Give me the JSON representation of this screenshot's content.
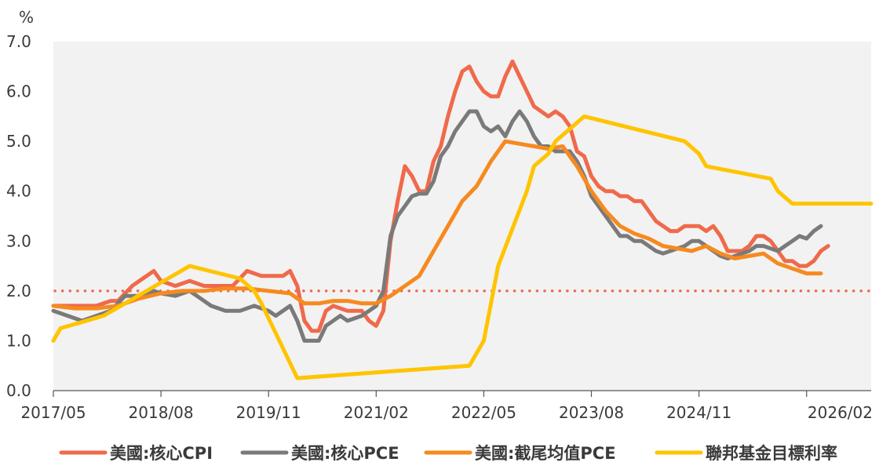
{
  "chart_data": {
    "type": "line",
    "unit": "%",
    "ylim": [
      0,
      7
    ],
    "yticks": [
      "0.0",
      "1.0",
      "2.0",
      "3.0",
      "4.0",
      "5.0",
      "6.0",
      "7.0"
    ],
    "xlim": [
      "2017/05",
      "2026/11"
    ],
    "xticks": [
      "2017/05",
      "2018/08",
      "2019/11",
      "2021/02",
      "2022/05",
      "2023/08",
      "2024/11",
      "2026/02"
    ],
    "reference_line": {
      "y": 2.0,
      "style": "dotted",
      "color": "#ef6a4b"
    },
    "grid": false,
    "legend_position": "bottom",
    "series": [
      {
        "name": "美國:核心CPI",
        "color": "#ef6a4b",
        "points": [
          [
            "2017/05",
            1.7
          ],
          [
            "2017/08",
            1.7
          ],
          [
            "2017/11",
            1.7
          ],
          [
            "2018/01",
            1.8
          ],
          [
            "2018/02",
            1.8
          ],
          [
            "2018/04",
            2.1
          ],
          [
            "2018/05",
            2.2
          ],
          [
            "2018/07",
            2.4
          ],
          [
            "2018/08",
            2.2
          ],
          [
            "2018/10",
            2.1
          ],
          [
            "2018/12",
            2.2
          ],
          [
            "2019/02",
            2.1
          ],
          [
            "2019/04",
            2.1
          ],
          [
            "2019/06",
            2.1
          ],
          [
            "2019/08",
            2.4
          ],
          [
            "2019/10",
            2.3
          ],
          [
            "2019/12",
            2.3
          ],
          [
            "2020/01",
            2.3
          ],
          [
            "2020/02",
            2.4
          ],
          [
            "2020/03",
            2.1
          ],
          [
            "2020/04",
            1.4
          ],
          [
            "2020/05",
            1.2
          ],
          [
            "2020/06",
            1.2
          ],
          [
            "2020/07",
            1.6
          ],
          [
            "2020/08",
            1.7
          ],
          [
            "2020/10",
            1.6
          ],
          [
            "2020/12",
            1.6
          ],
          [
            "2021/01",
            1.4
          ],
          [
            "2021/02",
            1.3
          ],
          [
            "2021/03",
            1.6
          ],
          [
            "2021/04",
            3.0
          ],
          [
            "2021/05",
            3.8
          ],
          [
            "2021/06",
            4.5
          ],
          [
            "2021/07",
            4.3
          ],
          [
            "2021/08",
            4.0
          ],
          [
            "2021/09",
            4.0
          ],
          [
            "2021/10",
            4.6
          ],
          [
            "2021/11",
            4.9
          ],
          [
            "2021/12",
            5.5
          ],
          [
            "2022/01",
            6.0
          ],
          [
            "2022/02",
            6.4
          ],
          [
            "2022/03",
            6.5
          ],
          [
            "2022/04",
            6.2
          ],
          [
            "2022/05",
            6.0
          ],
          [
            "2022/06",
            5.9
          ],
          [
            "2022/07",
            5.9
          ],
          [
            "2022/08",
            6.3
          ],
          [
            "2022/09",
            6.6
          ],
          [
            "2022/10",
            6.3
          ],
          [
            "2022/11",
            6.0
          ],
          [
            "2022/12",
            5.7
          ],
          [
            "2023/01",
            5.6
          ],
          [
            "2023/02",
            5.5
          ],
          [
            "2023/03",
            5.6
          ],
          [
            "2023/04",
            5.5
          ],
          [
            "2023/05",
            5.3
          ],
          [
            "2023/06",
            4.8
          ],
          [
            "2023/07",
            4.7
          ],
          [
            "2023/08",
            4.3
          ],
          [
            "2023/09",
            4.1
          ],
          [
            "2023/10",
            4.0
          ],
          [
            "2023/11",
            4.0
          ],
          [
            "2023/12",
            3.9
          ],
          [
            "2024/01",
            3.9
          ],
          [
            "2024/02",
            3.8
          ],
          [
            "2024/03",
            3.8
          ],
          [
            "2024/04",
            3.6
          ],
          [
            "2024/05",
            3.4
          ],
          [
            "2024/06",
            3.3
          ],
          [
            "2024/07",
            3.2
          ],
          [
            "2024/08",
            3.2
          ],
          [
            "2024/09",
            3.3
          ],
          [
            "2024/10",
            3.3
          ],
          [
            "2024/11",
            3.3
          ],
          [
            "2024/12",
            3.2
          ],
          [
            "2025/01",
            3.3
          ],
          [
            "2025/02",
            3.1
          ],
          [
            "2025/03",
            2.8
          ],
          [
            "2025/04",
            2.8
          ],
          [
            "2025/05",
            2.8
          ],
          [
            "2025/06",
            2.9
          ],
          [
            "2025/07",
            3.1
          ],
          [
            "2025/08",
            3.1
          ],
          [
            "2025/09",
            3.0
          ],
          [
            "2025/10",
            2.8
          ],
          [
            "2025/11",
            2.6
          ],
          [
            "2025/12",
            2.6
          ],
          [
            "2026/01",
            2.5
          ],
          [
            "2026/02",
            2.5
          ],
          [
            "2026/03",
            2.6
          ],
          [
            "2026/04",
            2.8
          ],
          [
            "2026/05",
            2.9
          ]
        ]
      },
      {
        "name": "美國:核心PCE",
        "color": "#7a7a7a",
        "points": [
          [
            "2017/05",
            1.6
          ],
          [
            "2017/07",
            1.5
          ],
          [
            "2017/09",
            1.4
          ],
          [
            "2017/11",
            1.5
          ],
          [
            "2018/01",
            1.6
          ],
          [
            "2018/03",
            1.9
          ],
          [
            "2018/05",
            1.9
          ],
          [
            "2018/07",
            2.0
          ],
          [
            "2018/08",
            1.95
          ],
          [
            "2018/10",
            1.9
          ],
          [
            "2018/12",
            2.0
          ],
          [
            "2019/01",
            1.9
          ],
          [
            "2019/03",
            1.7
          ],
          [
            "2019/05",
            1.6
          ],
          [
            "2019/07",
            1.6
          ],
          [
            "2019/09",
            1.7
          ],
          [
            "2019/11",
            1.6
          ],
          [
            "2019/12",
            1.5
          ],
          [
            "2020/01",
            1.6
          ],
          [
            "2020/02",
            1.7
          ],
          [
            "2020/03",
            1.4
          ],
          [
            "2020/04",
            1.0
          ],
          [
            "2020/05",
            1.0
          ],
          [
            "2020/06",
            1.0
          ],
          [
            "2020/07",
            1.3
          ],
          [
            "2020/08",
            1.4
          ],
          [
            "2020/09",
            1.5
          ],
          [
            "2020/10",
            1.4
          ],
          [
            "2020/12",
            1.5
          ],
          [
            "2021/01",
            1.6
          ],
          [
            "2021/02",
            1.7
          ],
          [
            "2021/03",
            2.0
          ],
          [
            "2021/04",
            3.1
          ],
          [
            "2021/05",
            3.5
          ],
          [
            "2021/06",
            3.7
          ],
          [
            "2021/07",
            3.9
          ],
          [
            "2021/08",
            3.95
          ],
          [
            "2021/09",
            3.95
          ],
          [
            "2021/10",
            4.2
          ],
          [
            "2021/11",
            4.7
          ],
          [
            "2021/12",
            4.9
          ],
          [
            "2022/01",
            5.2
          ],
          [
            "2022/02",
            5.4
          ],
          [
            "2022/03",
            5.6
          ],
          [
            "2022/04",
            5.6
          ],
          [
            "2022/05",
            5.3
          ],
          [
            "2022/06",
            5.2
          ],
          [
            "2022/07",
            5.3
          ],
          [
            "2022/08",
            5.1
          ],
          [
            "2022/09",
            5.4
          ],
          [
            "2022/10",
            5.6
          ],
          [
            "2022/11",
            5.4
          ],
          [
            "2022/12",
            5.1
          ],
          [
            "2023/01",
            4.9
          ],
          [
            "2023/02",
            4.9
          ],
          [
            "2023/03",
            4.8
          ],
          [
            "2023/04",
            4.8
          ],
          [
            "2023/05",
            4.8
          ],
          [
            "2023/06",
            4.6
          ],
          [
            "2023/07",
            4.3
          ],
          [
            "2023/08",
            3.9
          ],
          [
            "2023/09",
            3.7
          ],
          [
            "2023/10",
            3.5
          ],
          [
            "2023/11",
            3.3
          ],
          [
            "2023/12",
            3.1
          ],
          [
            "2024/01",
            3.1
          ],
          [
            "2024/02",
            3.0
          ],
          [
            "2024/03",
            3.0
          ],
          [
            "2024/04",
            2.9
          ],
          [
            "2024/05",
            2.8
          ],
          [
            "2024/06",
            2.75
          ],
          [
            "2024/07",
            2.8
          ],
          [
            "2024/08",
            2.85
          ],
          [
            "2024/09",
            2.9
          ],
          [
            "2024/10",
            3.0
          ],
          [
            "2024/11",
            3.0
          ],
          [
            "2024/12",
            2.9
          ],
          [
            "2025/01",
            2.8
          ],
          [
            "2025/02",
            2.7
          ],
          [
            "2025/03",
            2.65
          ],
          [
            "2025/04",
            2.7
          ],
          [
            "2025/05",
            2.75
          ],
          [
            "2025/06",
            2.8
          ],
          [
            "2025/07",
            2.9
          ],
          [
            "2025/08",
            2.9
          ],
          [
            "2025/09",
            2.85
          ],
          [
            "2025/10",
            2.8
          ],
          [
            "2025/11",
            2.9
          ],
          [
            "2025/12",
            3.0
          ],
          [
            "2026/01",
            3.1
          ],
          [
            "2026/02",
            3.05
          ],
          [
            "2026/03",
            3.2
          ],
          [
            "2026/04",
            3.3
          ]
        ]
      },
      {
        "name": "美國:截尾均值PCE",
        "color": "#f68a1f",
        "points": [
          [
            "2017/05",
            1.7
          ],
          [
            "2017/08",
            1.65
          ],
          [
            "2017/11",
            1.65
          ],
          [
            "2018/02",
            1.7
          ],
          [
            "2018/05",
            1.85
          ],
          [
            "2018/08",
            1.95
          ],
          [
            "2018/11",
            2.0
          ],
          [
            "2019/02",
            2.0
          ],
          [
            "2019/05",
            2.05
          ],
          [
            "2019/08",
            2.05
          ],
          [
            "2019/11",
            2.0
          ],
          [
            "2020/02",
            1.95
          ],
          [
            "2020/04",
            1.75
          ],
          [
            "2020/06",
            1.75
          ],
          [
            "2020/08",
            1.8
          ],
          [
            "2020/10",
            1.8
          ],
          [
            "2020/12",
            1.75
          ],
          [
            "2021/02",
            1.75
          ],
          [
            "2021/04",
            1.9
          ],
          [
            "2021/06",
            2.1
          ],
          [
            "2021/08",
            2.3
          ],
          [
            "2021/10",
            2.8
          ],
          [
            "2021/12",
            3.3
          ],
          [
            "2022/02",
            3.8
          ],
          [
            "2022/04",
            4.1
          ],
          [
            "2022/06",
            4.6
          ],
          [
            "2022/08",
            5.0
          ],
          [
            "2022/10",
            4.95
          ],
          [
            "2022/12",
            4.9
          ],
          [
            "2023/02",
            4.85
          ],
          [
            "2023/04",
            4.9
          ],
          [
            "2023/06",
            4.5
          ],
          [
            "2023/08",
            4.0
          ],
          [
            "2023/10",
            3.6
          ],
          [
            "2023/12",
            3.3
          ],
          [
            "2024/02",
            3.15
          ],
          [
            "2024/04",
            3.05
          ],
          [
            "2024/06",
            2.9
          ],
          [
            "2024/08",
            2.85
          ],
          [
            "2024/10",
            2.8
          ],
          [
            "2024/12",
            2.9
          ],
          [
            "2025/02",
            2.75
          ],
          [
            "2025/04",
            2.65
          ],
          [
            "2025/06",
            2.7
          ],
          [
            "2025/08",
            2.75
          ],
          [
            "2025/10",
            2.55
          ],
          [
            "2025/12",
            2.45
          ],
          [
            "2026/02",
            2.35
          ],
          [
            "2026/04",
            2.35
          ]
        ]
      },
      {
        "name": "聯邦基金目標利率",
        "color": "#ffc400",
        "points": [
          [
            "2017/05",
            1.0
          ],
          [
            "2017/06",
            1.25
          ],
          [
            "2017/12",
            1.5
          ],
          [
            "2018/03",
            1.75
          ],
          [
            "2018/06",
            2.0
          ],
          [
            "2018/09",
            2.25
          ],
          [
            "2018/12",
            2.5
          ],
          [
            "2019/07",
            2.25
          ],
          [
            "2019/09",
            2.0
          ],
          [
            "2019/10",
            1.75
          ],
          [
            "2020/03",
            0.25
          ],
          [
            "2022/03",
            0.5
          ],
          [
            "2022/05",
            1.0
          ],
          [
            "2022/06",
            1.75
          ],
          [
            "2022/07",
            2.5
          ],
          [
            "2022/09",
            3.25
          ],
          [
            "2022/11",
            4.0
          ],
          [
            "2022/12",
            4.5
          ],
          [
            "2023/02",
            4.75
          ],
          [
            "2023/03",
            5.0
          ],
          [
            "2023/05",
            5.25
          ],
          [
            "2023/07",
            5.5
          ],
          [
            "2024/09",
            5.0
          ],
          [
            "2024/11",
            4.75
          ],
          [
            "2024/12",
            4.5
          ],
          [
            "2025/09",
            4.25
          ],
          [
            "2025/10",
            4.0
          ],
          [
            "2025/12",
            3.75
          ],
          [
            "2026/11",
            3.75
          ]
        ]
      }
    ]
  }
}
